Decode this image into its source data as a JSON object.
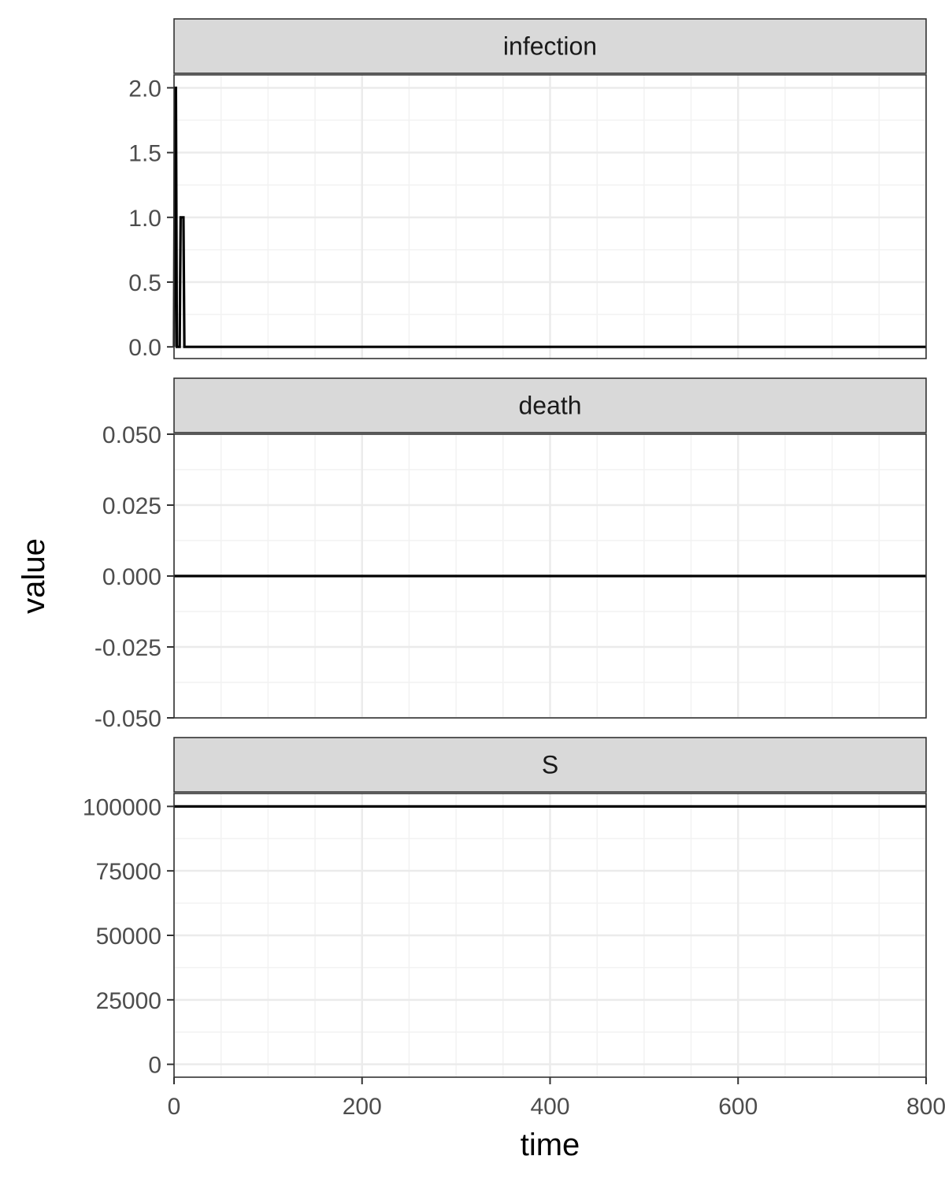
{
  "chart_data": {
    "type": "line",
    "layout": "faceted",
    "xlabel": "time",
    "ylabel": "value",
    "x_ticks": [
      0,
      200,
      400,
      600,
      800
    ],
    "x_tick_labels": [
      "0",
      "200",
      "400",
      "600",
      "800"
    ],
    "xlim": [
      0,
      800
    ],
    "grid": true,
    "line_color": "#000000",
    "panels": [
      {
        "name": "infection",
        "ylim": [
          -0.09,
          2.1
        ],
        "y_ticks": [
          0,
          0.5,
          1,
          1.5,
          2
        ],
        "y_tick_labels": [
          "0.0",
          "0.5",
          "1.0",
          "1.5",
          "2.0"
        ],
        "x": [
          0,
          1,
          2,
          3,
          4,
          5,
          6,
          7,
          8,
          9,
          10,
          11,
          12,
          800
        ],
        "y": [
          0,
          2,
          2,
          0,
          0,
          0,
          0,
          1,
          1,
          1,
          1,
          0,
          0,
          0
        ]
      },
      {
        "name": "death",
        "ylim": [
          -0.05,
          0.05
        ],
        "y_ticks": [
          -0.05,
          -0.025,
          0,
          0.025,
          0.05
        ],
        "y_tick_labels": [
          "-0.050",
          "-0.025",
          "0.000",
          "0.025",
          "0.050"
        ],
        "x": [
          0,
          800
        ],
        "y": [
          0,
          0
        ]
      },
      {
        "name": "S",
        "ylim": [
          -5000,
          105000
        ],
        "y_ticks": [
          0,
          25000,
          50000,
          75000,
          100000
        ],
        "y_tick_labels": [
          "0",
          "25000",
          "50000",
          "75000",
          "100000"
        ],
        "x": [
          0,
          800
        ],
        "y": [
          99997,
          99997
        ]
      }
    ]
  },
  "colors": {
    "strip_fill": "#d9d9d9",
    "strip_border": "#333333",
    "panel_border": "#333333",
    "grid_major": "#ebebeb",
    "grid_minor": "#f2f2f2",
    "tick_color": "#333333"
  }
}
